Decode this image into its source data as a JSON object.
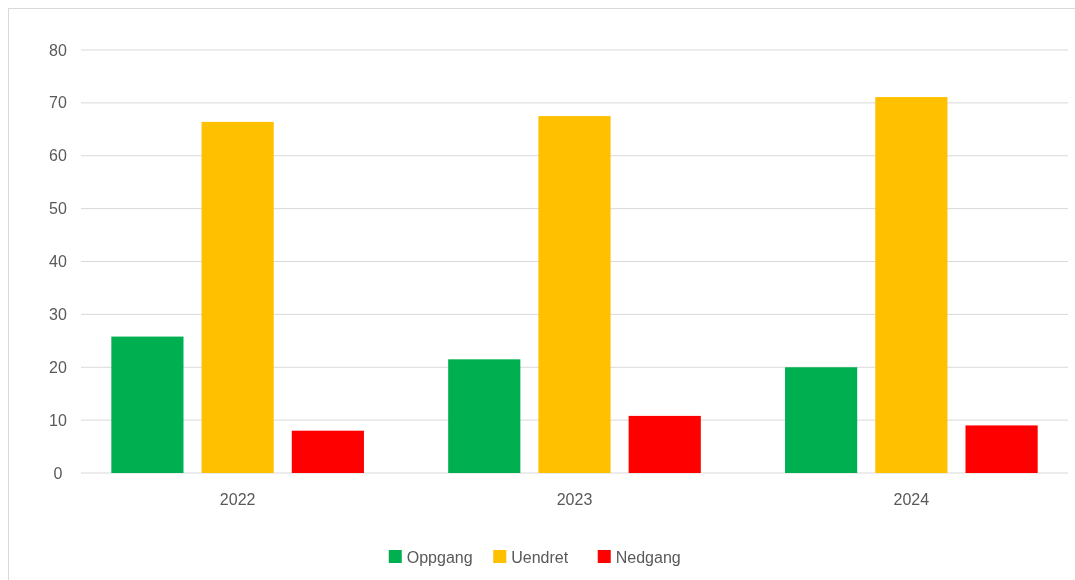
{
  "chart_data": {
    "type": "bar",
    "categories": [
      "2022",
      "2023",
      "2024"
    ],
    "series": [
      {
        "name": "Oppgang",
        "color": "#00b050",
        "values": [
          25.8,
          21.5,
          20
        ]
      },
      {
        "name": "Uendret",
        "color": "#ffc000",
        "values": [
          66.4,
          67.5,
          71.1
        ]
      },
      {
        "name": "Nedgang",
        "color": "#ff0000",
        "values": [
          8,
          10.8,
          9
        ]
      }
    ],
    "ylim": [
      0,
      80
    ],
    "yticks": [
      0,
      10,
      20,
      30,
      40,
      50,
      60,
      70,
      80
    ],
    "grid": "y",
    "legend": "bottom"
  }
}
